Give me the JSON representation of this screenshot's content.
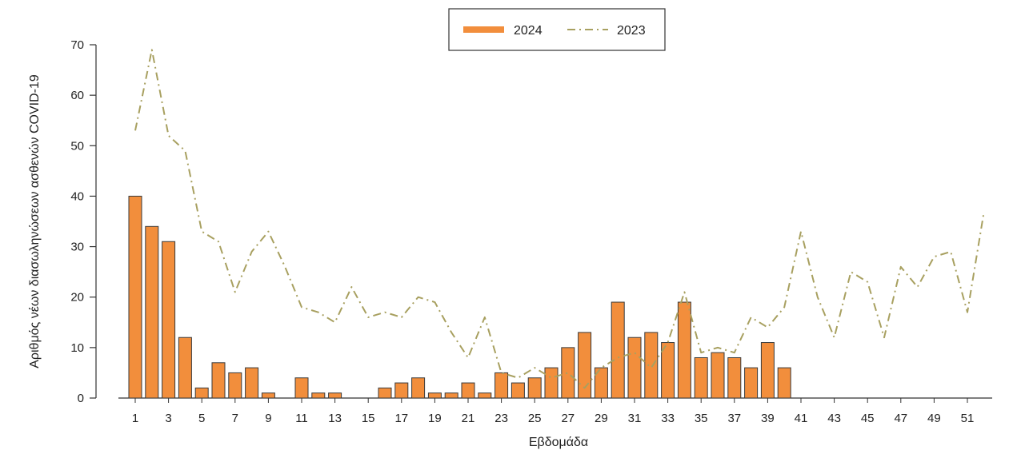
{
  "chart_data": {
    "type": "bar",
    "xlabel": "Εβδομάδα",
    "ylabel": "Αριθμός νέων διασωληνώσεων ασθενών COVID-19",
    "ylim": [
      0,
      70
    ],
    "yticks": [
      0,
      10,
      20,
      30,
      40,
      50,
      60,
      70
    ],
    "xticks": [
      1,
      3,
      5,
      7,
      9,
      11,
      13,
      15,
      17,
      19,
      21,
      23,
      25,
      27,
      29,
      31,
      33,
      35,
      37,
      39,
      41,
      43,
      45,
      47,
      49,
      51
    ],
    "grid": false,
    "legend_position": "top-center",
    "series": [
      {
        "name": "2024",
        "kind": "bar",
        "color": "#F28E3C",
        "x": [
          1,
          2,
          3,
          4,
          5,
          6,
          7,
          8,
          9,
          10,
          11,
          12,
          13,
          14,
          15,
          16,
          17,
          18,
          19,
          20,
          21,
          22,
          23,
          24,
          25,
          26,
          27,
          28,
          29,
          30,
          31,
          32,
          33,
          34,
          35,
          36,
          37,
          38,
          39,
          40
        ],
        "values": [
          40,
          34,
          31,
          12,
          2,
          7,
          5,
          6,
          1,
          0,
          4,
          1,
          1,
          0,
          0,
          2,
          3,
          4,
          1,
          1,
          3,
          1,
          5,
          3,
          4,
          6,
          10,
          13,
          6,
          19,
          12,
          13,
          11,
          19,
          8,
          9,
          8,
          6,
          11,
          6
        ]
      },
      {
        "name": "2023",
        "kind": "line",
        "style": "dashdot",
        "color": "#A8A060",
        "x": [
          1,
          2,
          3,
          4,
          5,
          6,
          7,
          8,
          9,
          10,
          11,
          12,
          13,
          14,
          15,
          16,
          17,
          18,
          19,
          20,
          21,
          22,
          23,
          24,
          25,
          26,
          27,
          28,
          29,
          30,
          31,
          32,
          33,
          34,
          35,
          36,
          37,
          38,
          39,
          40,
          41,
          42,
          43,
          44,
          45,
          46,
          47,
          48,
          49,
          50,
          51,
          52
        ],
        "values": [
          53,
          69,
          52,
          49,
          33,
          31,
          21,
          29,
          33,
          26,
          18,
          17,
          15,
          22,
          16,
          17,
          16,
          20,
          19,
          13,
          8,
          16,
          5,
          4,
          6,
          4,
          5,
          2,
          6,
          8,
          9,
          6,
          11,
          21,
          9,
          10,
          9,
          16,
          14,
          18,
          33,
          20,
          12,
          25,
          23,
          12,
          26,
          22,
          28,
          29,
          17,
          37
        ]
      }
    ]
  }
}
